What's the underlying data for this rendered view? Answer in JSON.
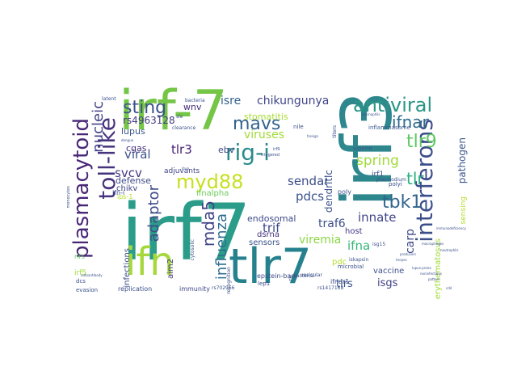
{
  "words": [
    {
      "text": "irf7",
      "color": "#2a9c89"
    },
    {
      "text": "irf-7",
      "color": "#75c646"
    },
    {
      "text": "irf3",
      "color": "#2d878d"
    },
    {
      "text": "tlr7",
      "color": "#26818e"
    },
    {
      "text": "ifn",
      "color": "#a6d83d"
    },
    {
      "text": "rig-i",
      "color": "#2b8b8b"
    },
    {
      "text": "mavs",
      "color": "#33638d"
    },
    {
      "text": "antiviral",
      "color": "#2a9686"
    },
    {
      "text": "interferons",
      "color": "#3c4e8a"
    },
    {
      "text": "toll-like",
      "color": "#46337e"
    },
    {
      "text": "plasmacytoid",
      "color": "#482677"
    },
    {
      "text": "myd88",
      "color": "#c7e020"
    },
    {
      "text": "sting",
      "color": "#3b528b"
    },
    {
      "text": "tlr9",
      "color": "#5ec962"
    },
    {
      "text": "ifnar",
      "color": "#2f6c8e"
    },
    {
      "text": "tbk1",
      "color": "#32658e"
    },
    {
      "text": "tlr",
      "color": "#2ab07f"
    },
    {
      "text": "mda5",
      "color": "#404387"
    },
    {
      "text": "adaptor",
      "color": "#3d4d8a"
    },
    {
      "text": "influenza",
      "color": "#2e6e8e"
    },
    {
      "text": "viruses",
      "color": "#a2da37"
    },
    {
      "text": "isre",
      "color": "#33638d"
    },
    {
      "text": "chikungunya",
      "color": "#404588"
    },
    {
      "text": "spring",
      "color": "#a0da39"
    },
    {
      "text": "sendai",
      "color": "#3d4e8a"
    },
    {
      "text": "innate",
      "color": "#414487"
    },
    {
      "text": "nucleic",
      "color": "#414287"
    },
    {
      "text": "pdcs",
      "color": "#3a548c"
    },
    {
      "text": "viral",
      "color": "#3b528b"
    },
    {
      "text": "svcv",
      "color": "#453882"
    },
    {
      "text": "tlr3",
      "color": "#482173"
    },
    {
      "text": "traf6",
      "color": "#3c508b"
    },
    {
      "text": "trif",
      "color": "#3e4989"
    },
    {
      "text": "viremia",
      "color": "#8bd646"
    },
    {
      "text": "ifna",
      "color": "#35b779"
    },
    {
      "text": "tlrs",
      "color": "#3b528b"
    },
    {
      "text": "isgs",
      "color": "#424086"
    },
    {
      "text": "carp",
      "color": "#3f4889"
    },
    {
      "text": "dendritic",
      "color": "#3b528b"
    },
    {
      "text": "pathogen",
      "color": "#39568c"
    },
    {
      "text": "rs4963128",
      "color": "#443a83"
    },
    {
      "text": "cgas",
      "color": "#472d7b"
    },
    {
      "text": "lupus",
      "color": "#39568c"
    },
    {
      "text": "ebv",
      "color": "#3e4a89"
    },
    {
      "text": "stomatitis",
      "color": "#a8db34"
    },
    {
      "text": "wnv",
      "color": "#472c7a"
    },
    {
      "text": "endosomal",
      "color": "#3e4989"
    },
    {
      "text": "dsrna",
      "color": "#46307e"
    },
    {
      "text": "host",
      "color": "#453581"
    },
    {
      "text": "ifnalpha",
      "color": "#6ccd5a"
    },
    {
      "text": "sensors",
      "color": "#3a538b"
    },
    {
      "text": "defense",
      "color": "#3e4a89"
    },
    {
      "text": "chikv",
      "color": "#404387"
    },
    {
      "text": "adjuvants",
      "color": "#404387"
    },
    {
      "text": "infections",
      "color": "#3c4f8a"
    },
    {
      "text": "pdc",
      "color": "#b5de2b"
    },
    {
      "text": "vaccine",
      "color": "#3c4f8a"
    },
    {
      "text": "erythematosus",
      "color": "#a2da37"
    },
    {
      "text": "sensing",
      "color": "#b2dd2d"
    },
    {
      "text": "aim2",
      "color": "#453882"
    },
    {
      "text": "irf5",
      "color": "#a0da39"
    },
    {
      "text": "rlrs",
      "color": "#65cb5e"
    },
    {
      "text": "ifnar1",
      "color": "#3d4e8a"
    },
    {
      "text": "irf1",
      "color": "#3e4c8a"
    },
    {
      "text": "poly",
      "color": "#3b528b"
    },
    {
      "text": "epstein-barr",
      "color": "#3e4a89"
    },
    {
      "text": "replication",
      "color": "#3b528b"
    },
    {
      "text": "immunity",
      "color": "#3f4788"
    },
    {
      "text": "evasion",
      "color": "#3b528b"
    },
    {
      "text": "dcs",
      "color": "#3b528b"
    },
    {
      "text": "nile",
      "color": "#3b528b"
    },
    {
      "text": "viperin",
      "color": "#3b528b"
    },
    {
      "text": "inflammasome",
      "color": "#39568c"
    },
    {
      "text": "plasmodium",
      "color": "#3b528b"
    },
    {
      "text": "polyi",
      "color": "#3b528b"
    },
    {
      "text": "microbial",
      "color": "#3b528b"
    },
    {
      "text": "iskapsin",
      "color": "#3b528b"
    },
    {
      "text": "isg15",
      "color": "#3b528b"
    },
    {
      "text": "bacterial",
      "color": "#3b528b"
    },
    {
      "text": "rlr",
      "color": "#3e4a89"
    },
    {
      "text": "lep1",
      "color": "#3e4a89"
    },
    {
      "text": "rs702966",
      "color": "#3b528b"
    },
    {
      "text": "rs1417168",
      "color": "#3b528b"
    },
    {
      "text": "ifn-i",
      "color": "#3e4a89"
    },
    {
      "text": "bacteria",
      "color": "#3b528b"
    },
    {
      "text": "latent",
      "color": "#3b528b"
    },
    {
      "text": "sle",
      "color": "#3b528b"
    },
    {
      "text": "clearance",
      "color": "#3b528b"
    },
    {
      "text": "vesicular",
      "color": "#3b528b"
    },
    {
      "text": "triggered",
      "color": "#3b528b"
    },
    {
      "text": "titers",
      "color": "#3b528b"
    },
    {
      "text": "recognition",
      "color": "#3b528b"
    },
    {
      "text": "cytosolic",
      "color": "#3b528b"
    },
    {
      "text": "ips-1",
      "color": "#b8de29"
    },
    {
      "text": "neutrophils",
      "color": "#3b528b"
    },
    {
      "text": "macrophages",
      "color": "#3b528b"
    },
    {
      "text": "monocytes",
      "color": "#3b528b"
    },
    {
      "text": "eosinophils",
      "color": "#3b528b"
    },
    {
      "text": "autoantibody",
      "color": "#3b528b"
    },
    {
      "text": "immunodeficiency",
      "color": "#3b528b"
    },
    {
      "text": "producers",
      "color": "#3b528b"
    },
    {
      "text": "foreign",
      "color": "#3b528b"
    },
    {
      "text": "dengue",
      "color": "#3b528b"
    },
    {
      "text": "herpes",
      "color": "#3b528b"
    },
    {
      "text": "ifn-b",
      "color": "#3b528b"
    },
    {
      "text": "irf9",
      "color": "#3b528b"
    },
    {
      "text": "lupus-prone",
      "color": "#3b528b"
    },
    {
      "text": "noninfectious",
      "color": "#3b528b"
    },
    {
      "text": "pattern",
      "color": "#3b528b"
    },
    {
      "text": "cd4",
      "color": "#3b528b"
    }
  ]
}
